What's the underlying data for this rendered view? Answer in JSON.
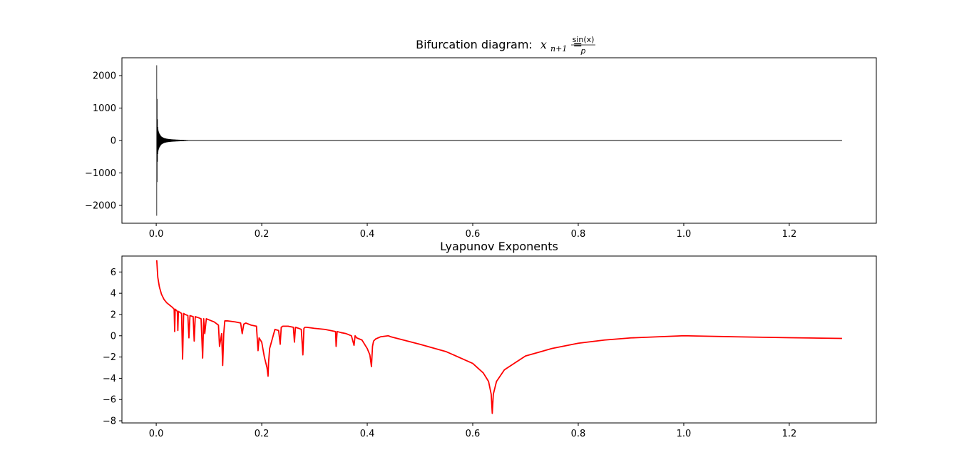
{
  "chart_data": [
    {
      "type": "scatter",
      "title": {
        "prefix": "Bifurcation diagram:",
        "math_lhs": "x",
        "math_sub": "n+1",
        "math_eq": "=",
        "frac_num": "sin(x)",
        "frac_den": "p"
      },
      "xlabel": "",
      "ylabel": "",
      "xlim": [
        -0.065,
        1.365
      ],
      "ylim": [
        -2550,
        2550
      ],
      "x_ticks": [
        0.0,
        0.2,
        0.4,
        0.6,
        0.8,
        1.0,
        1.2
      ],
      "x_tick_labels": [
        "0.0",
        "0.2",
        "0.4",
        "0.6",
        "0.8",
        "1.0",
        "1.2"
      ],
      "y_ticks": [
        -2000,
        -1000,
        0,
        1000,
        2000
      ],
      "y_tick_labels": [
        "−2000",
        "−1000",
        "0",
        "1000",
        "2000"
      ],
      "color": "#000000",
      "grid": false,
      "envelope": [
        [
          0.001,
          2320
        ],
        [
          0.002,
          780
        ],
        [
          0.003,
          420
        ],
        [
          0.004,
          300
        ],
        [
          0.006,
          210
        ],
        [
          0.008,
          160
        ],
        [
          0.01,
          120
        ],
        [
          0.013,
          90
        ],
        [
          0.016,
          70
        ],
        [
          0.02,
          55
        ],
        [
          0.025,
          44
        ],
        [
          0.03,
          36
        ],
        [
          0.036,
          30
        ],
        [
          0.043,
          24
        ],
        [
          0.05,
          20
        ],
        [
          0.06,
          12
        ],
        [
          0.08,
          7
        ],
        [
          0.12,
          5
        ],
        [
          0.3,
          3
        ],
        [
          0.6,
          2.5
        ],
        [
          0.93,
          2
        ],
        [
          0.932,
          0.5
        ],
        [
          1.3,
          0.5
        ]
      ]
    },
    {
      "type": "line",
      "title": "Lyapunov Exponents",
      "xlabel": "",
      "ylabel": "",
      "xlim": [
        -0.065,
        1.365
      ],
      "ylim": [
        -8.2,
        7.5
      ],
      "x_ticks": [
        0.0,
        0.2,
        0.4,
        0.6,
        0.8,
        1.0,
        1.2
      ],
      "x_tick_labels": [
        "0.0",
        "0.2",
        "0.4",
        "0.6",
        "0.8",
        "1.0",
        "1.2"
      ],
      "y_ticks": [
        -8,
        -6,
        -4,
        -2,
        0,
        2,
        4,
        6
      ],
      "y_tick_labels": [
        "−8",
        "−6",
        "−4",
        "−2",
        "0",
        "2",
        "4",
        "6"
      ],
      "color": "#ff0000",
      "grid": false,
      "series": [
        {
          "x": [
            0.001,
            0.003,
            0.006,
            0.01,
            0.015,
            0.02,
            0.03,
            0.034,
            0.035,
            0.036,
            0.04,
            0.041,
            0.042,
            0.045,
            0.048,
            0.05,
            0.052,
            0.055,
            0.06,
            0.062,
            0.064,
            0.07,
            0.072,
            0.074,
            0.08,
            0.085,
            0.088,
            0.09,
            0.092,
            0.095,
            0.1,
            0.11,
            0.118,
            0.12,
            0.124,
            0.126,
            0.128,
            0.13,
            0.135,
            0.15,
            0.16,
            0.163,
            0.166,
            0.17,
            0.18,
            0.19,
            0.193,
            0.195,
            0.2,
            0.205,
            0.21,
            0.212,
            0.213,
            0.215,
            0.22,
            0.225,
            0.232,
            0.235,
            0.237,
            0.24,
            0.25,
            0.26,
            0.262,
            0.264,
            0.27,
            0.275,
            0.278,
            0.28,
            0.282,
            0.285,
            0.3,
            0.32,
            0.34,
            0.341,
            0.343,
            0.35,
            0.36,
            0.37,
            0.375,
            0.377,
            0.38,
            0.39,
            0.4,
            0.405,
            0.408,
            0.41,
            0.412,
            0.416,
            0.425,
            0.44,
            0.445,
            0.5,
            0.55,
            0.6,
            0.62,
            0.63,
            0.635,
            0.637,
            0.639,
            0.645,
            0.66,
            0.7,
            0.75,
            0.8,
            0.85,
            0.9,
            0.95,
            1.0,
            1.05,
            1.1,
            1.2,
            1.3
          ],
          "y": [
            7.1,
            5.5,
            4.6,
            3.9,
            3.4,
            3.1,
            2.7,
            2.5,
            0.4,
            2.5,
            2.3,
            0.5,
            2.3,
            2.2,
            2.1,
            -2.2,
            2.1,
            2.0,
            1.9,
            -0.2,
            1.9,
            1.8,
            -0.5,
            1.8,
            1.7,
            1.6,
            -2.1,
            1.6,
            0.2,
            1.6,
            1.5,
            1.3,
            1.0,
            -1.0,
            0.2,
            -2.8,
            0.2,
            1.4,
            1.4,
            1.3,
            1.2,
            0.2,
            1.1,
            1.2,
            1.0,
            0.9,
            -1.4,
            -0.2,
            -0.6,
            -2.0,
            -3.0,
            -3.8,
            -2.5,
            -1.2,
            -0.3,
            0.6,
            0.5,
            -0.8,
            0.8,
            0.9,
            0.9,
            0.8,
            -0.6,
            0.8,
            0.7,
            0.6,
            -1.8,
            0.7,
            0.8,
            0.8,
            0.7,
            0.6,
            0.4,
            -1.0,
            0.4,
            0.3,
            0.2,
            0.0,
            -0.9,
            0.0,
            -0.2,
            -0.4,
            -1.2,
            -1.8,
            -2.9,
            -1.0,
            -0.5,
            -0.3,
            -0.1,
            0.0,
            -0.1,
            -0.8,
            -1.5,
            -2.6,
            -3.5,
            -4.3,
            -5.5,
            -7.3,
            -5.5,
            -4.3,
            -3.2,
            -1.9,
            -1.2,
            -0.7,
            -0.4,
            -0.2,
            -0.1,
            0.0,
            -0.05,
            -0.1,
            -0.18,
            -0.25
          ]
        }
      ]
    }
  ]
}
